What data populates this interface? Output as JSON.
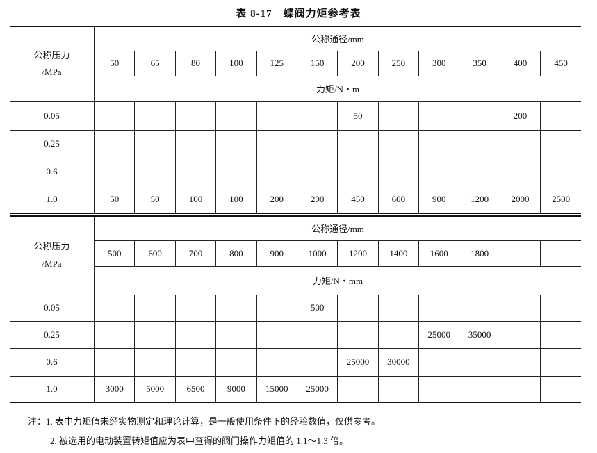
{
  "title": "表 8-17　蝶阀力矩参考表",
  "tables": [
    {
      "pressure_header": [
        "公称压力",
        "/MPa"
      ],
      "diameter_header": "公称通径/mm",
      "diameters": [
        "50",
        "65",
        "80",
        "100",
        "125",
        "150",
        "200",
        "250",
        "300",
        "350",
        "400",
        "450"
      ],
      "torque_header": "力矩/N・m",
      "rows": [
        {
          "pressure": "0.05",
          "values": [
            "",
            "",
            "",
            "",
            "",
            "",
            "50",
            "",
            "",
            "",
            "200",
            ""
          ]
        },
        {
          "pressure": "0.25",
          "values": [
            "",
            "",
            "",
            "",
            "",
            "",
            "",
            "",
            "",
            "",
            "",
            ""
          ]
        },
        {
          "pressure": "0.6",
          "values": [
            "",
            "",
            "",
            "",
            "",
            "",
            "",
            "",
            "",
            "",
            "",
            ""
          ]
        },
        {
          "pressure": "1.0",
          "values": [
            "50",
            "50",
            "100",
            "100",
            "200",
            "200",
            "450",
            "600",
            "900",
            "1200",
            "2000",
            "2500"
          ]
        }
      ]
    },
    {
      "pressure_header": [
        "公称压力",
        "/MPa"
      ],
      "diameter_header": "公称通径/mm",
      "diameters": [
        "500",
        "600",
        "700",
        "800",
        "900",
        "1000",
        "1200",
        "1400",
        "1600",
        "1800",
        "",
        ""
      ],
      "torque_header": "力矩/N・mm",
      "rows": [
        {
          "pressure": "0.05",
          "values": [
            "",
            "",
            "",
            "",
            "",
            "500",
            "",
            "",
            "",
            "",
            "",
            ""
          ]
        },
        {
          "pressure": "0.25",
          "values": [
            "",
            "",
            "",
            "",
            "",
            "",
            "",
            "",
            "25000",
            "35000",
            "",
            ""
          ]
        },
        {
          "pressure": "0.6",
          "values": [
            "",
            "",
            "",
            "",
            "",
            "",
            "25000",
            "30000",
            "",
            "",
            "",
            ""
          ]
        },
        {
          "pressure": "1.0",
          "values": [
            "3000",
            "5000",
            "6500",
            "9000",
            "15000",
            "25000",
            "",
            "",
            "",
            "",
            "",
            ""
          ]
        }
      ]
    }
  ],
  "notes": [
    "注：1. 表中力矩值未经实物测定和理论计算，是一般使用条件下的经验数值，仅供参考。",
    "2. 被选用的电动装置转矩值应为表中查得的阀门操作力矩值的 1.1～1.3 倍。"
  ]
}
